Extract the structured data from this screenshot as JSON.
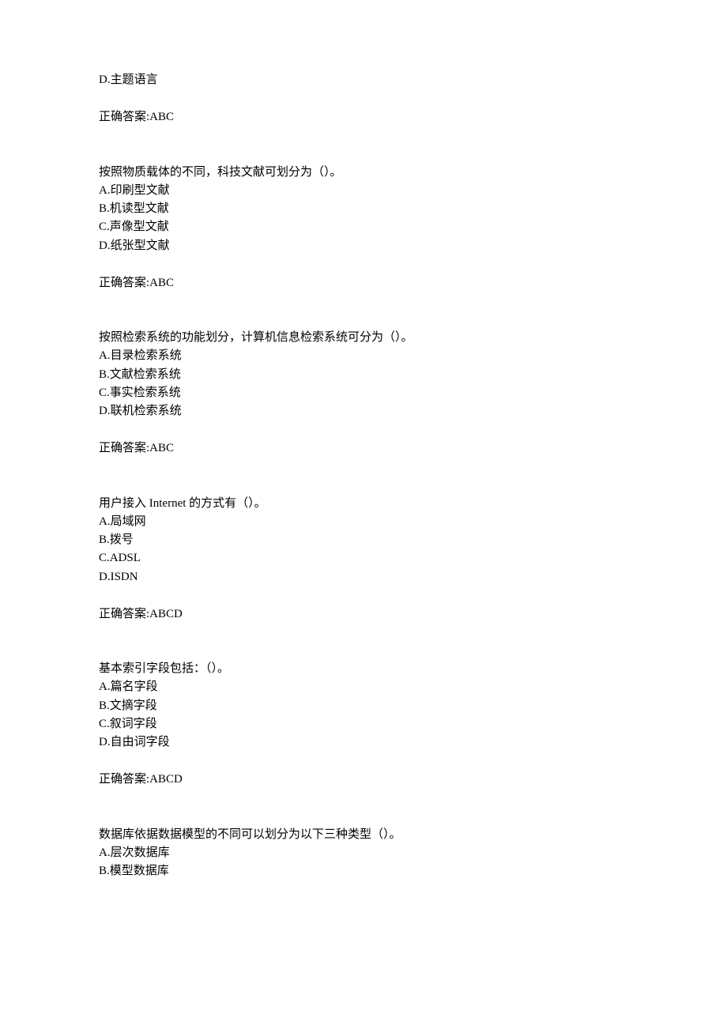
{
  "answer_label_prefix": "正确答案:",
  "questions": [
    {
      "stem": null,
      "options": [
        "D.主题语言"
      ],
      "answer": "ABC"
    },
    {
      "stem": "按照物质载体的不同，科技文献可划分为（）。",
      "options": [
        "A.印刷型文献",
        "B.机读型文献",
        "C.声像型文献",
        "D.纸张型文献"
      ],
      "answer": "ABC"
    },
    {
      "stem": "按照检索系统的功能划分，计算机信息检索系统可分为（）。",
      "options": [
        "A.目录检索系统",
        "B.文献检索系统",
        "C.事实检索系统",
        "D.联机检索系统"
      ],
      "answer": "ABC"
    },
    {
      "stem": "用户接入 Internet 的方式有（）。",
      "options": [
        "A.局域网",
        "B.拨号",
        "C.ADSL",
        "D.ISDN"
      ],
      "answer": "ABCD"
    },
    {
      "stem": "基本索引字段包括：（）。",
      "options": [
        "A.篇名字段",
        "B.文摘字段",
        "C.叙词字段",
        "D.自由词字段"
      ],
      "answer": "ABCD"
    },
    {
      "stem": "数据库依据数据模型的不同可以划分为以下三种类型（）。",
      "options": [
        "A.层次数据库",
        "B.模型数据库"
      ],
      "answer": null
    }
  ]
}
